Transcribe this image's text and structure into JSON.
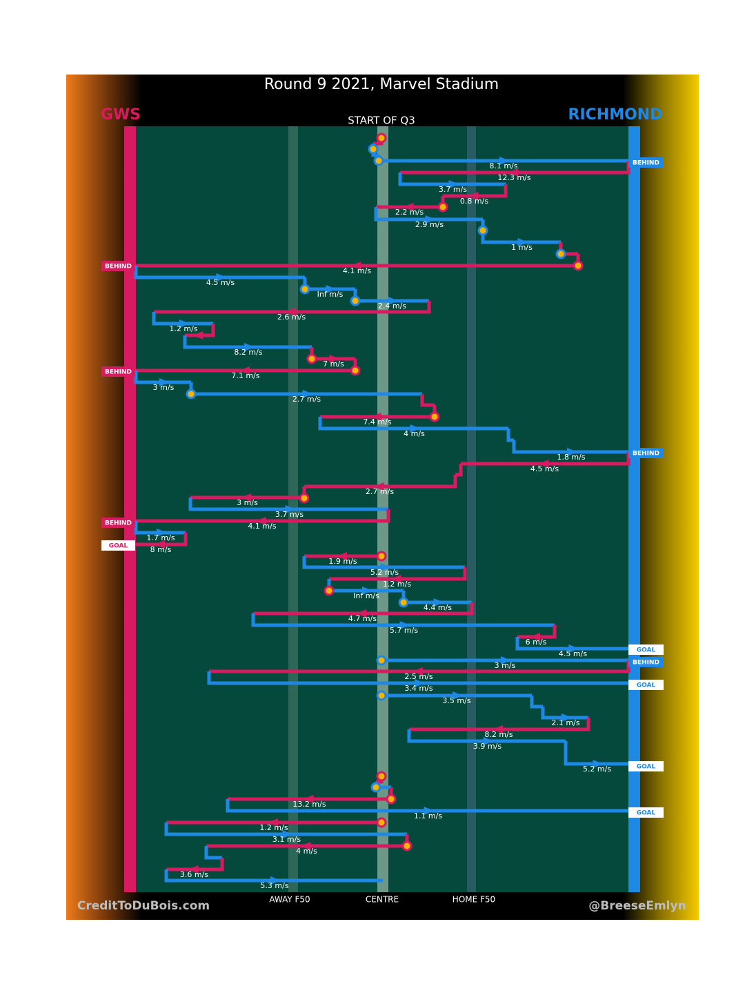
{
  "title": "Round 9 2021, Marvel Stadium",
  "teams": {
    "left": "GWS",
    "right": "RICHMOND"
  },
  "start_label": "START OF Q3",
  "field_labels": [
    "AWAY F50",
    "CENTRE",
    "HOME F50"
  ],
  "credits": {
    "left": "CreditToDuBois.com",
    "right": "@BreeseEmlyn"
  },
  "events": [
    "BEHIND",
    "BEHIND",
    "BEHIND",
    "BEHIND",
    "BEHIND",
    "GOAL",
    "GOAL",
    "BEHIND",
    "GOAL",
    "GOAL",
    "GOAL"
  ],
  "speeds": [
    "8.1 m/s",
    "12.3 m/s",
    "3.7 m/s",
    "0.8 m/s",
    "2.2 m/s",
    "2.9 m/s",
    "1 m/s",
    "4.1 m/s",
    "4.5 m/s",
    "Inf m/s",
    "2.4 m/s",
    "2.6 m/s",
    "1.2 m/s",
    "8.2 m/s",
    "7 m/s",
    "7.1 m/s",
    "3 m/s",
    "2.7 m/s",
    "7.4 m/s",
    "4 m/s",
    "1.8 m/s",
    "4.5 m/s",
    "2.7 m/s",
    "3 m/s",
    "3.7 m/s",
    "4.1 m/s",
    "1.7 m/s",
    "8 m/s",
    "1.9 m/s",
    "5.2 m/s",
    "1.2 m/s",
    "Inf m/s",
    "4.4 m/s",
    "4.7 m/s",
    "5.7 m/s",
    "6 m/s",
    "4.5 m/s",
    "3 m/s",
    "2.5 m/s",
    "3.4 m/s",
    "3.5 m/s",
    "2.1 m/s",
    "8.2 m/s",
    "3.9 m/s",
    "5.2 m/s",
    "13.2 m/s",
    "1.1 m/s",
    "1.2 m/s",
    "3.1 m/s",
    "4 m/s",
    "3.6 m/s",
    "5.3 m/s"
  ]
}
